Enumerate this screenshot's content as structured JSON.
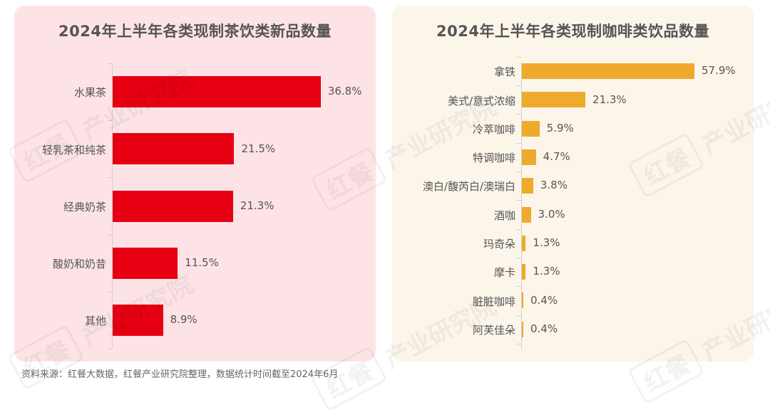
{
  "colors": {
    "tea_panel_bg": "#fde3e6",
    "coffee_panel_bg": "#fcf5ea",
    "tea_bar": "#e60012",
    "coffee_bar": "#eeaa2c",
    "text": "#555555"
  },
  "tea_chart": {
    "title": "2024年上半年各类现制茶饮类新品数量",
    "items": [
      {
        "label": "水果茶",
        "value": 36.8,
        "display": "36.8%"
      },
      {
        "label": "轻乳茶和纯茶",
        "value": 21.5,
        "display": "21.5%"
      },
      {
        "label": "经典奶茶",
        "value": 21.3,
        "display": "21.3%"
      },
      {
        "label": "酸奶和奶昔",
        "value": 11.5,
        "display": "11.5%"
      },
      {
        "label": "其他",
        "value": 8.9,
        "display": "8.9%"
      }
    ]
  },
  "coffee_chart": {
    "title": "2024年上半年各类现制咖啡类饮品数量",
    "items": [
      {
        "label": "拿铁",
        "value": 57.9,
        "display": "57.9%"
      },
      {
        "label": "美式/意式浓缩",
        "value": 21.3,
        "display": "21.3%"
      },
      {
        "label": "冷萃咖啡",
        "value": 5.9,
        "display": "5.9%"
      },
      {
        "label": "特调咖啡",
        "value": 4.7,
        "display": "4.7%"
      },
      {
        "label": "澳白/馥芮白/澳瑞白",
        "value": 3.8,
        "display": "3.8%"
      },
      {
        "label": "酒咖",
        "value": 3.0,
        "display": "3.0%"
      },
      {
        "label": "玛奇朵",
        "value": 1.3,
        "display": "1.3%"
      },
      {
        "label": "摩卡",
        "value": 1.3,
        "display": "1.3%"
      },
      {
        "label": "脏脏咖啡",
        "value": 0.4,
        "display": "0.4%"
      },
      {
        "label": "阿芙佳朵",
        "value": 0.4,
        "display": "0.4%"
      }
    ]
  },
  "footnote": "资料来源：红餐大数据，红餐产业研究院整理，数据统计时间截至2024年6月",
  "watermark": {
    "brand": "红餐",
    "text": "产业研究院"
  },
  "chart_data": [
    {
      "type": "bar",
      "orientation": "horizontal",
      "title": "2024年上半年各类现制茶饮类新品数量",
      "categories": [
        "水果茶",
        "轻乳茶和纯茶",
        "经典奶茶",
        "酸奶和奶昔",
        "其他"
      ],
      "values": [
        36.8,
        21.5,
        21.3,
        11.5,
        8.9
      ],
      "unit": "%",
      "xlabel": "",
      "ylabel": "",
      "grid": false,
      "color": "#e60012"
    },
    {
      "type": "bar",
      "orientation": "horizontal",
      "title": "2024年上半年各类现制咖啡类饮品数量",
      "categories": [
        "拿铁",
        "美式/意式浓缩",
        "冷萃咖啡",
        "特调咖啡",
        "澳白/馥芮白/澳瑞白",
        "酒咖",
        "玛奇朵",
        "摩卡",
        "脏脏咖啡",
        "阿芙佳朵"
      ],
      "values": [
        57.9,
        21.3,
        5.9,
        4.7,
        3.8,
        3.0,
        1.3,
        1.3,
        0.4,
        0.4
      ],
      "unit": "%",
      "xlabel": "",
      "ylabel": "",
      "grid": false,
      "color": "#eeaa2c"
    }
  ]
}
